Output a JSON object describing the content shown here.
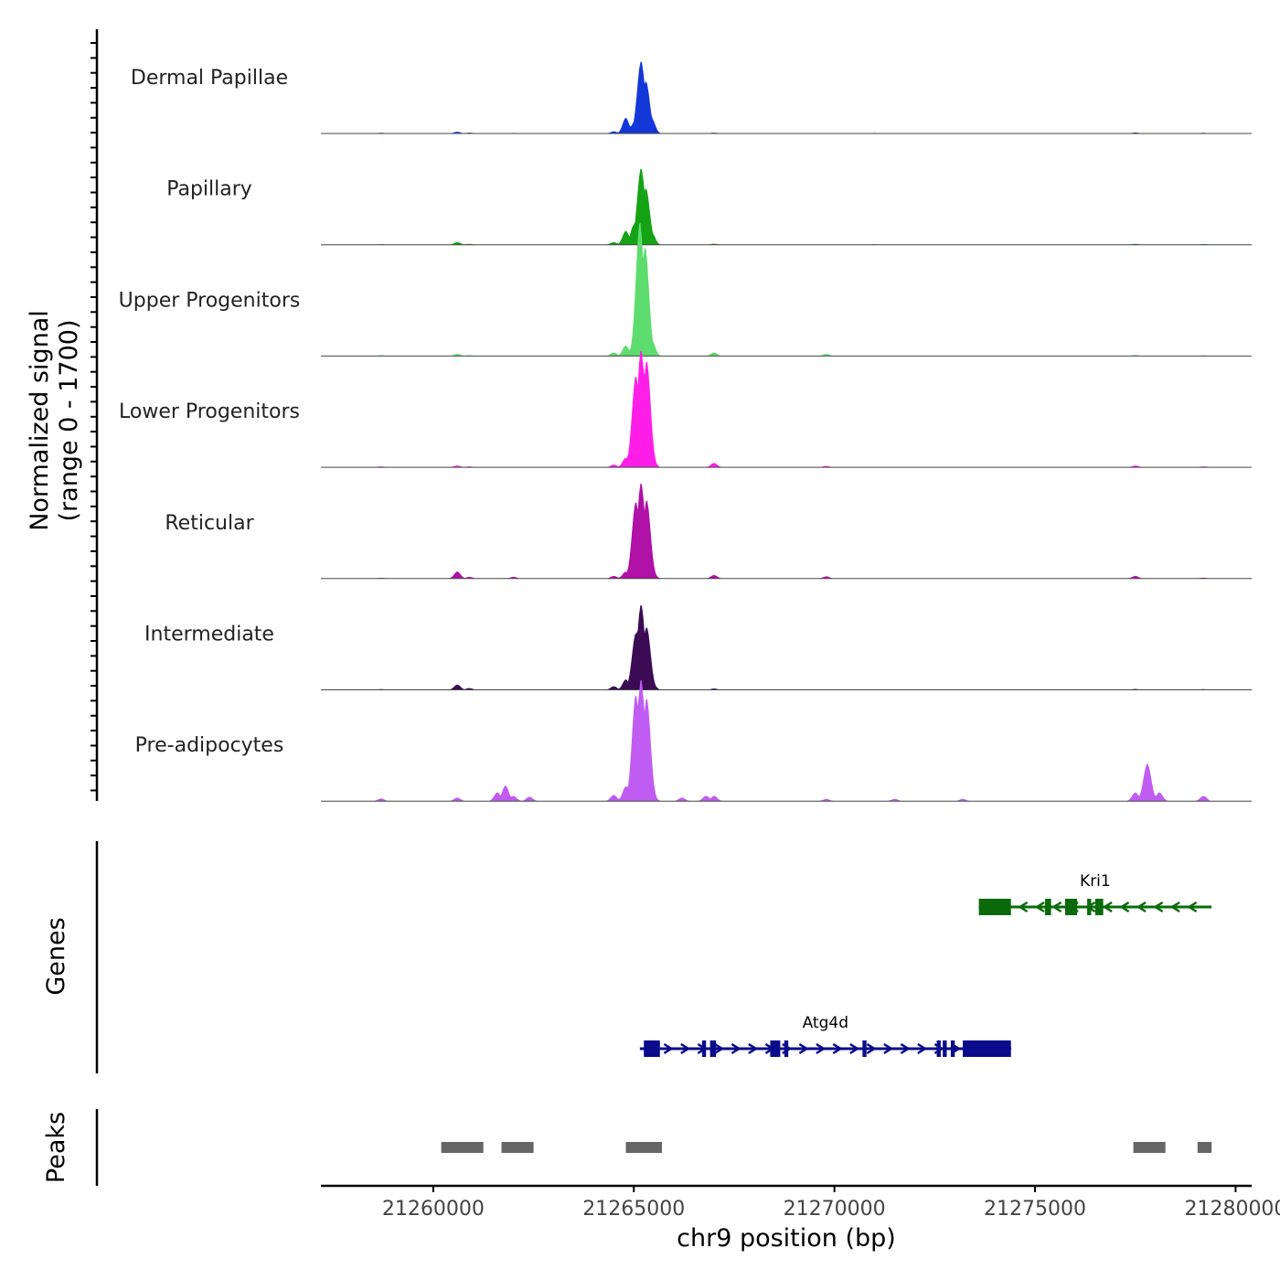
{
  "chart_data": {
    "type": "area",
    "title": "",
    "chromosome": "chr9",
    "xlabel": "chr9 position (bp)",
    "xlim": [
      21257200,
      21280400
    ],
    "x_ticks": [
      21260000,
      21265000,
      21270000,
      21275000,
      21280000
    ],
    "x_tick_labels": [
      "21260000",
      "21265000",
      "21270000",
      "21275000",
      "21280000"
    ],
    "signal_panel": {
      "ylabel_line1": "Normalized signal",
      "ylabel_line2": "(range 0 - 1700)",
      "ylim": [
        0,
        1700
      ],
      "series": [
        {
          "name": "Dermal Papillae",
          "color": "#1437d8",
          "points": [
            [
              21258700,
              8
            ],
            [
              21260600,
              20
            ],
            [
              21260900,
              10
            ],
            [
              21262000,
              6
            ],
            [
              21264500,
              25
            ],
            [
              21264800,
              180
            ],
            [
              21265000,
              120
            ],
            [
              21265180,
              830
            ],
            [
              21265300,
              600
            ],
            [
              21265450,
              170
            ],
            [
              21267000,
              10
            ],
            [
              21271000,
              6
            ],
            [
              21277500,
              12
            ],
            [
              21279200,
              8
            ]
          ]
        },
        {
          "name": "Papillary",
          "color": "#15a315",
          "points": [
            [
              21258700,
              6
            ],
            [
              21260600,
              30
            ],
            [
              21260900,
              10
            ],
            [
              21264500,
              30
            ],
            [
              21264800,
              160
            ],
            [
              21265000,
              230
            ],
            [
              21265180,
              880
            ],
            [
              21265300,
              650
            ],
            [
              21265450,
              140
            ],
            [
              21267000,
              12
            ],
            [
              21271000,
              5
            ],
            [
              21277500,
              10
            ],
            [
              21279200,
              8
            ]
          ]
        },
        {
          "name": "Upper Progenitors",
          "color": "#5edc6e",
          "points": [
            [
              21258700,
              10
            ],
            [
              21260600,
              25
            ],
            [
              21260900,
              10
            ],
            [
              21264500,
              40
            ],
            [
              21264800,
              120
            ],
            [
              21265000,
              160
            ],
            [
              21265150,
              1540
            ],
            [
              21265280,
              1250
            ],
            [
              21265450,
              180
            ],
            [
              21267000,
              40
            ],
            [
              21269800,
              25
            ],
            [
              21277500,
              12
            ],
            [
              21279200,
              8
            ]
          ]
        },
        {
          "name": "Lower Progenitors",
          "color": "#ff1ee8",
          "points": [
            [
              21258700,
              10
            ],
            [
              21260600,
              20
            ],
            [
              21260900,
              10
            ],
            [
              21264500,
              30
            ],
            [
              21264800,
              110
            ],
            [
              21265050,
              1050
            ],
            [
              21265180,
              1350
            ],
            [
              21265320,
              1220
            ],
            [
              21265450,
              120
            ],
            [
              21267000,
              50
            ],
            [
              21269800,
              15
            ],
            [
              21277500,
              20
            ],
            [
              21279200,
              10
            ]
          ]
        },
        {
          "name": "Reticular",
          "color": "#b011a6",
          "points": [
            [
              21258700,
              8
            ],
            [
              21260600,
              80
            ],
            [
              21260900,
              20
            ],
            [
              21262000,
              20
            ],
            [
              21264500,
              30
            ],
            [
              21264800,
              80
            ],
            [
              21265050,
              880
            ],
            [
              21265180,
              1100
            ],
            [
              21265320,
              900
            ],
            [
              21265450,
              100
            ],
            [
              21267000,
              40
            ],
            [
              21269800,
              25
            ],
            [
              21277500,
              30
            ],
            [
              21279200,
              10
            ]
          ]
        },
        {
          "name": "Intermediate",
          "color": "#3b0b55",
          "points": [
            [
              21258700,
              8
            ],
            [
              21260600,
              60
            ],
            [
              21260900,
              20
            ],
            [
              21264500,
              40
            ],
            [
              21264800,
              120
            ],
            [
              21265050,
              650
            ],
            [
              21265180,
              980
            ],
            [
              21265320,
              720
            ],
            [
              21265450,
              100
            ],
            [
              21267000,
              15
            ],
            [
              21277500,
              10
            ],
            [
              21279200,
              8
            ]
          ]
        },
        {
          "name": "Pre-adipocytes",
          "color": "#c05cf2",
          "points": [
            [
              21258700,
              30
            ],
            [
              21260600,
              40
            ],
            [
              21261600,
              100
            ],
            [
              21261800,
              180
            ],
            [
              21262000,
              60
            ],
            [
              21262400,
              50
            ],
            [
              21264500,
              70
            ],
            [
              21264800,
              170
            ],
            [
              21265050,
              1220
            ],
            [
              21265180,
              1400
            ],
            [
              21265320,
              1180
            ],
            [
              21265450,
              120
            ],
            [
              21266200,
              40
            ],
            [
              21266800,
              60
            ],
            [
              21267000,
              60
            ],
            [
              21269800,
              25
            ],
            [
              21271500,
              25
            ],
            [
              21273200,
              25
            ],
            [
              21277500,
              100
            ],
            [
              21277800,
              430
            ],
            [
              21278100,
              100
            ],
            [
              21279200,
              60
            ]
          ]
        }
      ]
    },
    "genes_panel": {
      "ylabel": "Genes",
      "genes": [
        {
          "name": "Kri1",
          "strand": "-",
          "start": 21273600,
          "end": 21279400,
          "color": "#0a6a0a",
          "exons": [
            [
              21273600,
              21274400
            ],
            [
              21275250,
              21275400
            ],
            [
              21275750,
              21276050
            ],
            [
              21276300,
              21276400
            ],
            [
              21276500,
              21276700
            ]
          ]
        },
        {
          "name": "Atg4d",
          "strand": "+",
          "start": 21265150,
          "end": 21274400,
          "color": "#0a0a8c",
          "exons": [
            [
              21265250,
              21265650
            ],
            [
              21266700,
              21266800
            ],
            [
              21266900,
              21267050
            ],
            [
              21268400,
              21268650
            ],
            [
              21268750,
              21268850
            ],
            [
              21270700,
              21270800
            ],
            [
              21272550,
              21272650
            ],
            [
              21272700,
              21272800
            ],
            [
              21272900,
              21273000
            ],
            [
              21273200,
              21274400
            ]
          ]
        }
      ]
    },
    "peaks_panel": {
      "ylabel": "Peaks",
      "color": "#666666",
      "peaks": [
        [
          21260200,
          21261250
        ],
        [
          21261700,
          21262500
        ],
        [
          21264800,
          21265700
        ],
        [
          21277450,
          21278250
        ],
        [
          21279050,
          21279400
        ]
      ]
    }
  }
}
